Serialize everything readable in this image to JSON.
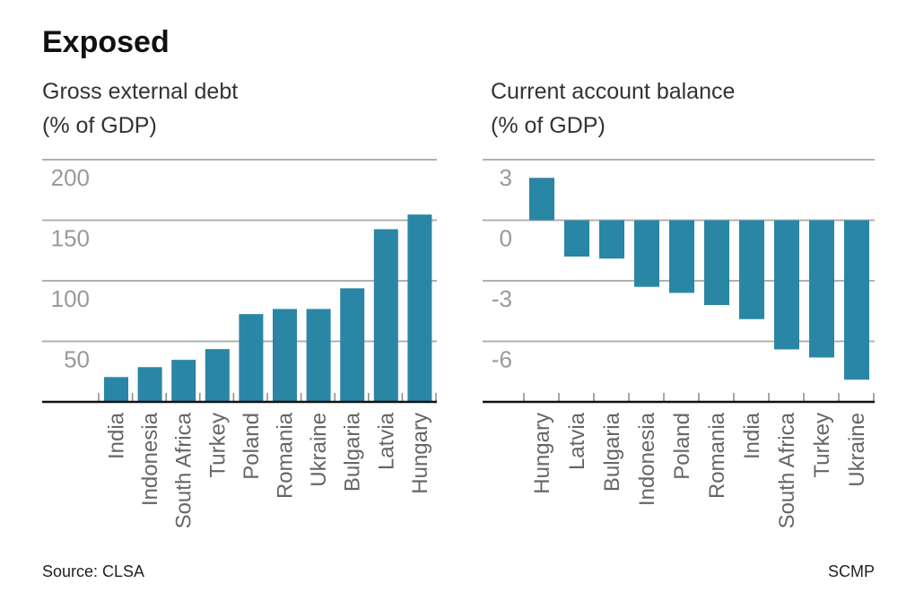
{
  "title": "Exposed",
  "source": "Source: CLSA",
  "credit": "SCMP",
  "colors": {
    "bar": "#2a86a5",
    "grid": "#b0b0b0",
    "axis": "#111111"
  },
  "chart_data": [
    {
      "type": "bar",
      "title": "Gross external debt",
      "subtitle": "(% of GDP)",
      "categories": [
        "India",
        "Indonesia",
        "South Africa",
        "Turkey",
        "Poland",
        "Romania",
        "Ukraine",
        "Bulgaria",
        "Latvia",
        "Hungary"
      ],
      "values": [
        20.5,
        28.7,
        34.7,
        43.6,
        72.5,
        76.7,
        76.7,
        93.8,
        142.6,
        154.7
      ],
      "yticks": [
        "200",
        "150",
        "100",
        "50"
      ],
      "ytick_values": [
        200,
        150,
        100,
        50
      ],
      "ylim": [
        0,
        200
      ],
      "grid": true
    },
    {
      "type": "bar",
      "title": "Current account balance",
      "subtitle": "(% of GDP)",
      "categories": [
        "Hungary",
        "Latvia",
        "Bulgaria",
        "Indonesia",
        "Poland",
        "Romania",
        "India",
        "South Africa",
        "Turkey",
        "Ukraine"
      ],
      "values": [
        2.1,
        -1.8,
        -1.9,
        -3.3,
        -3.6,
        -4.2,
        -4.9,
        -6.4,
        -6.8,
        -7.9
      ],
      "yticks": [
        "3",
        "0",
        "-3",
        "-6"
      ],
      "ytick_values": [
        3,
        0,
        -3,
        -6
      ],
      "ylim": [
        -9,
        3
      ],
      "grid": true
    }
  ]
}
